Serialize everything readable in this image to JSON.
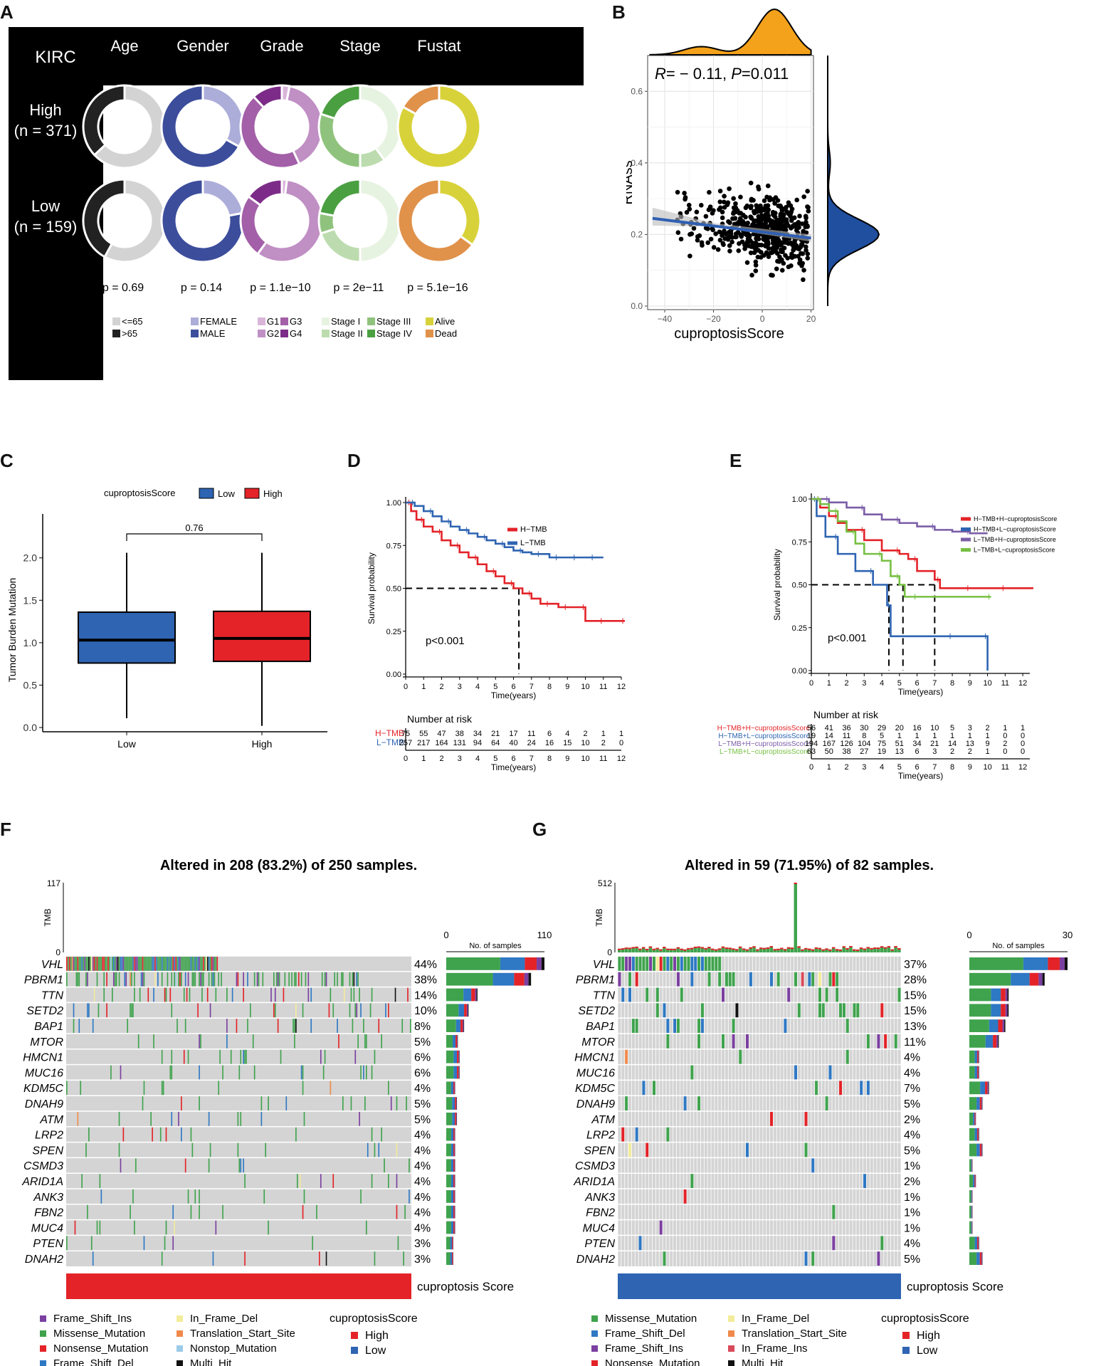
{
  "panel_labels": {
    "A": "A",
    "B": "B",
    "C": "C",
    "D": "D",
    "E": "E",
    "F": "F",
    "G": "G"
  },
  "chart_data": [
    {
      "id": "A",
      "type": "donut-grid",
      "title": "KIRC",
      "columns": [
        "Age",
        "Gender",
        "Grade",
        "Stage",
        "Fustat"
      ],
      "rows": [
        {
          "label": "High",
          "n": "(n = 371)"
        },
        {
          "label": "Low",
          "n": "(n = 159)"
        }
      ],
      "pvalues": [
        "p = 0.69",
        "p = 0.14",
        "p = 1.1e−10",
        "p = 2e−11",
        "p = 5.1e−16"
      ],
      "legends": [
        [
          {
            "name": "<=65",
            "color": "#d3d3d3"
          },
          {
            "name": ">65",
            "color": "#222222"
          }
        ],
        [
          {
            "name": "FEMALE",
            "color": "#adadda"
          },
          {
            "name": "MALE",
            "color": "#3c4d9c"
          }
        ],
        [
          {
            "name": "G1",
            "color": "#d9b6d9"
          },
          {
            "name": "G3",
            "color": "#a35fa8"
          },
          {
            "name": "G2",
            "color": "#c08fc4"
          },
          {
            "name": "G4",
            "color": "#7c2c88"
          }
        ],
        [
          {
            "name": "Stage I",
            "color": "#e7f3e1"
          },
          {
            "name": "Stage III",
            "color": "#8fc37d"
          },
          {
            "name": "Stage II",
            "color": "#bcdcaf"
          },
          {
            "name": "Stage IV",
            "color": "#4a9f41"
          }
        ],
        [
          {
            "name": "Alive",
            "color": "#d8d23a"
          },
          {
            "name": "Dead",
            "color": "#e0914a"
          }
        ]
      ],
      "slices": {
        "high": [
          [
            {
              "v": 0.63,
              "c": "#d3d3d3"
            },
            {
              "v": 0.37,
              "c": "#222222"
            }
          ],
          [
            {
              "v": 0.33,
              "c": "#adadda"
            },
            {
              "v": 0.67,
              "c": "#3c4d9c"
            }
          ],
          [
            {
              "v": 0.03,
              "c": "#d9b6d9"
            },
            {
              "v": 0.4,
              "c": "#c08fc4"
            },
            {
              "v": 0.45,
              "c": "#a35fa8"
            },
            {
              "v": 0.12,
              "c": "#7c2c88"
            }
          ],
          [
            {
              "v": 0.4,
              "c": "#e7f3e1"
            },
            {
              "v": 0.1,
              "c": "#bcdcaf"
            },
            {
              "v": 0.3,
              "c": "#8fc37d"
            },
            {
              "v": 0.2,
              "c": "#4a9f41"
            }
          ],
          [
            {
              "v": 0.83,
              "c": "#d8d23a"
            },
            {
              "v": 0.17,
              "c": "#e0914a"
            }
          ]
        ],
        "low": [
          [
            {
              "v": 0.58,
              "c": "#d3d3d3"
            },
            {
              "v": 0.42,
              "c": "#222222"
            }
          ],
          [
            {
              "v": 0.22,
              "c": "#adadda"
            },
            {
              "v": 0.78,
              "c": "#3c4d9c"
            }
          ],
          [
            {
              "v": 0.02,
              "c": "#d9b6d9"
            },
            {
              "v": 0.58,
              "c": "#c08fc4"
            },
            {
              "v": 0.25,
              "c": "#a35fa8"
            },
            {
              "v": 0.15,
              "c": "#7c2c88"
            }
          ],
          [
            {
              "v": 0.5,
              "c": "#e7f3e1"
            },
            {
              "v": 0.2,
              "c": "#bcdcaf"
            },
            {
              "v": 0.08,
              "c": "#8fc37d"
            },
            {
              "v": 0.22,
              "c": "#4a9f41"
            }
          ],
          [
            {
              "v": 0.35,
              "c": "#d8d23a"
            },
            {
              "v": 0.65,
              "c": "#e0914a"
            }
          ]
        ]
      }
    },
    {
      "id": "B",
      "type": "scatter",
      "annotation": {
        "r_label": "R",
        "r_value": "= − 0.11,",
        "p_label": "P",
        "p_value": "=0.011"
      },
      "xlabel": "cuproptosisScore",
      "ylabel": "RNAss",
      "xlim": [
        -47,
        21
      ],
      "ylim": [
        -0.01,
        0.7
      ],
      "xticks": [
        -40,
        -20,
        0,
        20
      ],
      "xtick_labels": [
        "−40",
        "−20",
        "0",
        "20"
      ],
      "yticks": [
        0.0,
        0.2,
        0.4,
        0.6
      ],
      "ytick_labels": [
        "0.0",
        "0.2",
        "0.4",
        "0.6"
      ],
      "n_points": 530,
      "point_seed": 7,
      "regression": {
        "x0": -45,
        "y0": 0.245,
        "x1": 20,
        "y1": 0.19
      },
      "regression_color": "#2f5fb3",
      "top_density_color": "#f4a21b",
      "right_density_color": "#1f4f9e"
    },
    {
      "id": "C",
      "type": "boxplot",
      "legend_title": "cuproptosisScore",
      "legend": [
        {
          "name": "Low",
          "color": "#2e64b2"
        },
        {
          "name": "High",
          "color": "#e32328"
        }
      ],
      "pvalue": "0.76",
      "ylabel": "Tumor Burden Mutation",
      "ylim": [
        -0.05,
        2.35
      ],
      "yticks": [
        0.0,
        0.5,
        1.0,
        1.5,
        2.0
      ],
      "ytick_labels": [
        "0.0",
        "0.5",
        "1.0",
        "1.5",
        "2.0"
      ],
      "categories": [
        "Low",
        "High"
      ],
      "boxes": [
        {
          "name": "Low",
          "min": 0.11,
          "q1": 0.76,
          "median": 1.03,
          "q3": 1.36,
          "max": 2.06,
          "color": "#2e64b2"
        },
        {
          "name": "High",
          "min": 0.02,
          "q1": 0.78,
          "median": 1.05,
          "q3": 1.37,
          "max": 2.06,
          "color": "#e32328"
        }
      ]
    },
    {
      "id": "D",
      "type": "line",
      "ylabel": "Survival probability",
      "xlabel": "Time(years)",
      "xticks": [
        0,
        1,
        2,
        3,
        4,
        5,
        6,
        7,
        8,
        9,
        10,
        11,
        12
      ],
      "yticks": [
        0,
        0.25,
        0.5,
        0.75,
        1.0
      ],
      "ytick_labels": [
        "0.00",
        "0.25",
        "0.50",
        "0.75",
        "1.00"
      ],
      "pvalue": "p<0.001",
      "median_lines": [
        {
          "x": 6.3
        }
      ],
      "series": [
        {
          "name": "H−TMB",
          "color": "#e32328",
          "x": [
            0,
            0.3,
            0.6,
            1,
            1.5,
            2,
            2.5,
            3,
            3.5,
            4,
            4.5,
            5,
            5.5,
            6,
            6.5,
            7,
            7.5,
            8,
            8.5,
            9,
            9.5,
            10,
            10.5,
            11,
            11.5,
            12.2
          ],
          "y": [
            1,
            0.95,
            0.9,
            0.86,
            0.83,
            0.78,
            0.75,
            0.71,
            0.68,
            0.64,
            0.6,
            0.57,
            0.53,
            0.5,
            0.47,
            0.44,
            0.41,
            0.41,
            0.39,
            0.39,
            0.39,
            0.31,
            0.31,
            0.31,
            0.31,
            0.31
          ]
        },
        {
          "name": "L−TMB",
          "color": "#2e64b2",
          "x": [
            0,
            0.5,
            1,
            1.5,
            2,
            2.5,
            3,
            3.5,
            4,
            4.5,
            5,
            5.5,
            6,
            6.5,
            7,
            7.5,
            8,
            8.5,
            9,
            9.5,
            10,
            10.5,
            11
          ],
          "y": [
            1,
            0.98,
            0.95,
            0.92,
            0.89,
            0.86,
            0.84,
            0.82,
            0.8,
            0.78,
            0.76,
            0.74,
            0.72,
            0.71,
            0.7,
            0.7,
            0.68,
            0.68,
            0.68,
            0.68,
            0.68,
            0.68,
            0.68
          ]
        }
      ],
      "risk_title": "Number at risk",
      "risk_rows": [
        {
          "name": "H−TMB",
          "color": "#e32328",
          "values": [
            "75",
            "55",
            "47",
            "38",
            "34",
            "21",
            "17",
            "11",
            "6",
            "4",
            "2",
            "1",
            "1"
          ]
        },
        {
          "name": "L−TMB",
          "color": "#2e64b2",
          "values": [
            "257",
            "217",
            "164",
            "131",
            "94",
            "64",
            "40",
            "24",
            "16",
            "15",
            "10",
            "2",
            "0"
          ]
        }
      ]
    },
    {
      "id": "E",
      "type": "line",
      "ylabel": "Survival probability",
      "xlabel": "Time(years)",
      "xticks": [
        0,
        1,
        2,
        3,
        4,
        5,
        6,
        7,
        8,
        9,
        10,
        11,
        12
      ],
      "yticks": [
        0,
        0.25,
        0.5,
        0.75,
        1.0
      ],
      "ytick_labels": [
        "0.00",
        "0.25",
        "0.50",
        "0.75",
        "1.00"
      ],
      "pvalue": "p<0.001",
      "median_lines": [
        {
          "x": 4.4
        },
        {
          "x": 5.2
        },
        {
          "x": 7.0
        }
      ],
      "series": [
        {
          "name": "H−TMB+H−cuproptosisScore",
          "color": "#e32328",
          "x": [
            0,
            0.5,
            1,
            1.5,
            2,
            3,
            4,
            5,
            5.5,
            6,
            7,
            7.3,
            8,
            9,
            10,
            11,
            12.6
          ],
          "y": [
            1,
            0.95,
            0.9,
            0.86,
            0.82,
            0.76,
            0.7,
            0.68,
            0.65,
            0.58,
            0.53,
            0.48,
            0.48,
            0.48,
            0.48,
            0.48,
            0.48
          ]
        },
        {
          "name": "H−TMB+L−cuproptosisScore",
          "color": "#2e64b2",
          "x": [
            0,
            0.3,
            0.8,
            1.5,
            2.5,
            3.5,
            4.3,
            4.5,
            6,
            8,
            10,
            10
          ],
          "y": [
            1,
            0.9,
            0.78,
            0.68,
            0.58,
            0.5,
            0.38,
            0.2,
            0.2,
            0.2,
            0.2,
            0
          ]
        },
        {
          "name": "L−TMB+H−cuproptosisScore",
          "color": "#7b5ea7",
          "x": [
            0,
            1,
            2,
            3,
            4,
            5,
            6,
            7,
            8,
            9,
            10
          ],
          "y": [
            1,
            0.98,
            0.95,
            0.91,
            0.88,
            0.86,
            0.84,
            0.82,
            0.81,
            0.8,
            0.8
          ]
        },
        {
          "name": "L−TMB+L−cuproptosisScore",
          "color": "#77c043",
          "x": [
            0,
            0.5,
            1,
            1.5,
            2,
            2.5,
            3,
            4,
            4.5,
            5,
            5.3,
            6,
            8,
            10.2
          ],
          "y": [
            1,
            0.97,
            0.93,
            0.87,
            0.81,
            0.74,
            0.68,
            0.64,
            0.55,
            0.5,
            0.43,
            0.43,
            0.43,
            0.43
          ]
        }
      ],
      "risk_title": "Number at risk",
      "risk_rows": [
        {
          "name": "H−TMB+H−cuproptosisScore",
          "color": "#e32328",
          "values": [
            "56",
            "41",
            "36",
            "30",
            "29",
            "20",
            "16",
            "10",
            "5",
            "3",
            "2",
            "1",
            "1"
          ]
        },
        {
          "name": "H−TMB+L−cuproptosisScore",
          "color": "#2e64b2",
          "values": [
            "19",
            "14",
            "11",
            "8",
            "5",
            "1",
            "1",
            "1",
            "1",
            "1",
            "1",
            "0",
            "0"
          ]
        },
        {
          "name": "L−TMB+H−cuproptosisScore",
          "color": "#7b5ea7",
          "values": [
            "194",
            "167",
            "126",
            "104",
            "75",
            "51",
            "34",
            "21",
            "14",
            "13",
            "9",
            "2",
            "0"
          ]
        },
        {
          "name": "L−TMB+L−cuproptosisScore",
          "color": "#77c043",
          "values": [
            "63",
            "50",
            "38",
            "27",
            "19",
            "13",
            "6",
            "3",
            "2",
            "2",
            "1",
            "0",
            "0"
          ]
        }
      ]
    },
    {
      "id": "F",
      "type": "heatmap",
      "title": "Altered in 208 (83.2%) of 250 samples.",
      "tmb_label": "TMB",
      "tmb_max": "117",
      "tmb_min": "0",
      "n_samples": 250,
      "bar_axis": {
        "min": "0",
        "max": "110",
        "label": "No. of samples"
      },
      "score_label": "cuproptosis Score",
      "score_color": "#e32328",
      "genes": [
        "VHL",
        "PBRM1",
        "TTN",
        "SETD2",
        "BAP1",
        "MTOR",
        "HMCN1",
        "MUC16",
        "KDM5C",
        "DNAH9",
        "ATM",
        "LRP2",
        "SPEN",
        "CSMD3",
        "ARID1A",
        "ANK3",
        "FBN2",
        "MUC4",
        "PTEN",
        "DNAH2"
      ],
      "percents": [
        "44%",
        "38%",
        "14%",
        "10%",
        "8%",
        "5%",
        "6%",
        "6%",
        "4%",
        "5%",
        "5%",
        "4%",
        "4%",
        "4%",
        "4%",
        "4%",
        "4%",
        "4%",
        "3%",
        "3%"
      ],
      "counts": [
        110,
        95,
        35,
        25,
        20,
        13,
        15,
        15,
        10,
        12,
        12,
        10,
        10,
        10,
        10,
        10,
        10,
        10,
        8,
        8
      ],
      "legend_left": [
        {
          "name": "Frame_Shift_Ins",
          "color": "#7b3fa0"
        },
        {
          "name": "Missense_Mutation",
          "color": "#3fa34d"
        },
        {
          "name": "Nonsense_Mutation",
          "color": "#e32328"
        },
        {
          "name": "Frame_Shift_Del",
          "color": "#2e78c4"
        }
      ],
      "legend_mid": [
        {
          "name": "In_Frame_Del",
          "color": "#f3ec9a"
        },
        {
          "name": "Translation_Start_Site",
          "color": "#f08a4b"
        },
        {
          "name": "Nonstop_Mutation",
          "color": "#9ccbe8"
        },
        {
          "name": "Multi_Hit",
          "color": "#111111"
        }
      ],
      "legend_score_title": "cuproptosisScore",
      "legend_score": [
        {
          "name": "High",
          "color": "#e32328"
        },
        {
          "name": "Low",
          "color": "#2e64b2"
        }
      ],
      "seed": 11
    },
    {
      "id": "G",
      "type": "heatmap",
      "title": "Altered in 59 (71.95%) of 82 samples.",
      "tmb_label": "TMB",
      "tmb_max": "512",
      "tmb_min": "0",
      "n_samples": 82,
      "bar_axis": {
        "min": "0",
        "max": "30",
        "label": "No. of samples"
      },
      "score_label": "cuproptosis Score",
      "score_color": "#2e64b2",
      "genes": [
        "VHL",
        "PBRM1",
        "TTN",
        "SETD2",
        "BAP1",
        "MTOR",
        "HMCN1",
        "MUC16",
        "KDM5C",
        "DNAH9",
        "ATM",
        "LRP2",
        "SPEN",
        "CSMD3",
        "ARID1A",
        "ANK3",
        "FBN2",
        "MUC4",
        "PTEN",
        "DNAH2"
      ],
      "percents": [
        "37%",
        "28%",
        "15%",
        "15%",
        "13%",
        "11%",
        "4%",
        "4%",
        "7%",
        "5%",
        "2%",
        "4%",
        "5%",
        "1%",
        "2%",
        "1%",
        "1%",
        "1%",
        "4%",
        "5%"
      ],
      "counts": [
        30,
        23,
        12,
        12,
        11,
        9,
        3,
        3,
        6,
        4,
        2,
        3,
        4,
        1,
        2,
        1,
        1,
        1,
        3,
        4
      ],
      "legend_left": [
        {
          "name": "Missense_Mutation",
          "color": "#3fa34d"
        },
        {
          "name": "Frame_Shift_Del",
          "color": "#2e78c4"
        },
        {
          "name": "Frame_Shift_Ins",
          "color": "#7b3fa0"
        },
        {
          "name": "Nonsense_Mutation",
          "color": "#e32328"
        }
      ],
      "legend_mid": [
        {
          "name": "In_Frame_Del",
          "color": "#f3ec9a"
        },
        {
          "name": "Translation_Start_Site",
          "color": "#f08a4b"
        },
        {
          "name": "In_Frame_Ins",
          "color": "#d94a5a"
        },
        {
          "name": "Multi_Hit",
          "color": "#111111"
        }
      ],
      "legend_score_title": "cuproptosisScore",
      "legend_score": [
        {
          "name": "High",
          "color": "#e32328"
        },
        {
          "name": "Low",
          "color": "#2e64b2"
        }
      ],
      "seed": 23
    }
  ]
}
